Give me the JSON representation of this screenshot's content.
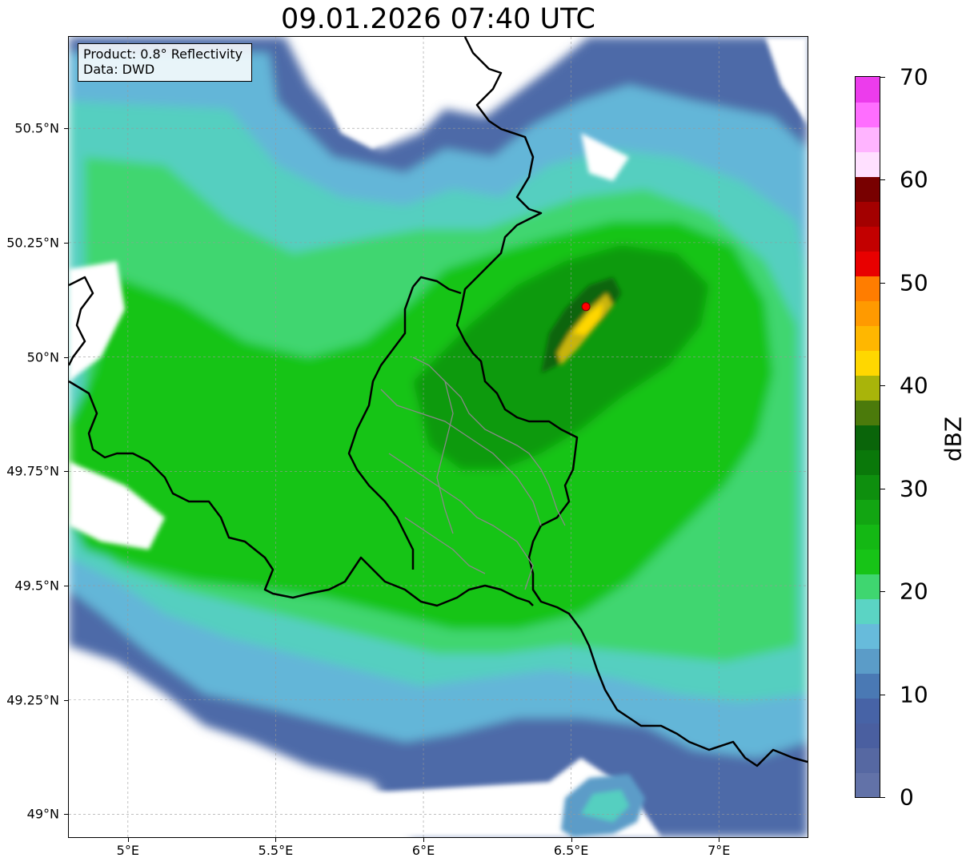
{
  "title": "09.01.2026 07:40 UTC",
  "info": {
    "product": "Product: 0.8° Reflectivity",
    "source": "Data: DWD"
  },
  "map_extent": {
    "lon": [
      4.8,
      7.3
    ],
    "lat": [
      48.95,
      50.7
    ]
  },
  "lat_ticks": [
    {
      "value": 50.5,
      "label": "50.5°N"
    },
    {
      "value": 50.25,
      "label": "50.25°N"
    },
    {
      "value": 50.0,
      "label": "50°N"
    },
    {
      "value": 49.75,
      "label": "49.75°N"
    },
    {
      "value": 49.5,
      "label": "49.5°N"
    },
    {
      "value": 49.25,
      "label": "49.25°N"
    },
    {
      "value": 49.0,
      "label": "49°N"
    }
  ],
  "lon_ticks": [
    {
      "value": 5.0,
      "label": "5°E"
    },
    {
      "value": 5.5,
      "label": "5.5°E"
    },
    {
      "value": 6.0,
      "label": "6°E"
    },
    {
      "value": 6.5,
      "label": "6.5°E"
    },
    {
      "value": 7.0,
      "label": "7°E"
    }
  ],
  "radar_site": {
    "lon": 6.55,
    "lat": 50.11,
    "color": "#ff0000"
  },
  "colorbar": {
    "label": "dBZ",
    "min": 0,
    "max": 70,
    "tick_labels": [
      {
        "value": 0,
        "label": "0"
      },
      {
        "value": 10,
        "label": "10"
      },
      {
        "value": 20,
        "label": "20"
      },
      {
        "value": 30,
        "label": "30"
      },
      {
        "value": 40,
        "label": "40"
      },
      {
        "value": 50,
        "label": "50"
      },
      {
        "value": 60,
        "label": "60"
      },
      {
        "value": 70,
        "label": "70"
      }
    ],
    "colors": [
      "#6272a8",
      "#5668a2",
      "#4a5fa0",
      "#4763a6",
      "#4a79b4",
      "#5b9cc8",
      "#67bbdb",
      "#5bd4c4",
      "#3fd670",
      "#17c417",
      "#14b814",
      "#12a512",
      "#0e8f0e",
      "#0a780a",
      "#0a650a",
      "#4b7a0b",
      "#a9b40a",
      "#ffd700",
      "#ffb700",
      "#ff9a00",
      "#ff7d00",
      "#e80000",
      "#c30000",
      "#a30000",
      "#780000",
      "#ffe0ff",
      "#ffb4ff",
      "#ff6eff",
      "#ec3cec"
    ]
  }
}
